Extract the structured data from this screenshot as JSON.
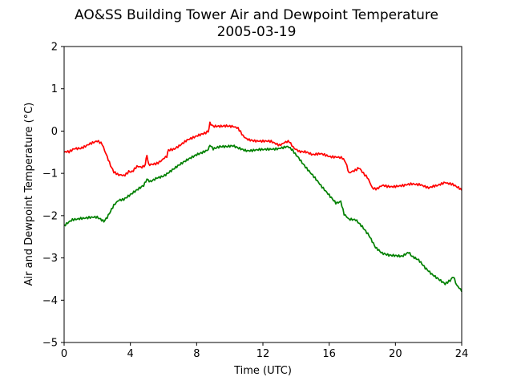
{
  "chart_data": {
    "type": "line",
    "title": "AO&SS Building Tower Air and Dewpoint Temperature",
    "subtitle": "2005-03-19",
    "xlabel": "Time (UTC)",
    "ylabel": "Air and Dewpoint Temperature (°C)",
    "xlim": [
      0,
      24
    ],
    "ylim": [
      -5,
      2
    ],
    "xticks": [
      0,
      4,
      8,
      12,
      16,
      20,
      24
    ],
    "yticks": [
      -5,
      -4,
      -3,
      -2,
      -1,
      0,
      1,
      2
    ],
    "grid": false,
    "legend": "none",
    "series": [
      {
        "color": "#ff0000",
        "x": [
          0,
          0.3,
          0.6,
          1,
          1.5,
          2,
          2.3,
          2.6,
          2.8,
          3,
          3.3,
          3.6,
          3.9,
          4.1,
          4.4,
          4.7,
          4.9,
          5,
          5.1,
          5.3,
          5.6,
          5.9,
          6.2,
          6.3,
          6.6,
          7,
          7.5,
          8,
          8.4,
          8.7,
          8.8,
          9,
          9.4,
          9.8,
          10.2,
          10.5,
          10.8,
          11.1,
          11.5,
          12,
          12.5,
          13,
          13.3,
          13.6,
          13.9,
          14.2,
          14.6,
          15,
          15.5,
          16,
          16.5,
          16.8,
          17,
          17.2,
          17.5,
          17.8,
          18,
          18.3,
          18.6,
          18.9,
          19.2,
          19.5,
          20,
          20.5,
          21,
          21.5,
          22,
          22.5,
          23,
          23.3,
          23.6,
          24
        ],
        "y": [
          -0.5,
          -0.5,
          -0.4,
          -0.4,
          -0.3,
          -0.25,
          -0.3,
          -0.6,
          -0.8,
          -0.95,
          -1.05,
          -1.05,
          -0.95,
          -0.95,
          -0.85,
          -0.85,
          -0.8,
          -0.55,
          -0.8,
          -0.8,
          -0.75,
          -0.7,
          -0.6,
          -0.45,
          -0.45,
          -0.35,
          -0.2,
          -0.1,
          -0.05,
          0.0,
          0.18,
          0.1,
          0.1,
          0.12,
          0.12,
          0.05,
          -0.1,
          -0.2,
          -0.22,
          -0.25,
          -0.25,
          -0.32,
          -0.28,
          -0.25,
          -0.4,
          -0.5,
          -0.5,
          -0.55,
          -0.55,
          -0.6,
          -0.6,
          -0.65,
          -0.75,
          -1.0,
          -0.95,
          -0.85,
          -0.95,
          -1.1,
          -1.35,
          -1.35,
          -1.3,
          -1.3,
          -1.3,
          -1.3,
          -1.25,
          -1.25,
          -1.35,
          -1.3,
          -1.2,
          -1.25,
          -1.3,
          -1.4
        ]
      },
      {
        "color": "#008000",
        "x": [
          0,
          0.5,
          1,
          1.5,
          2,
          2.4,
          2.6,
          2.8,
          3,
          3.3,
          3.6,
          4,
          4.4,
          4.8,
          5,
          5.2,
          5.6,
          6,
          6.4,
          6.8,
          7.2,
          7.6,
          8,
          8.4,
          8.7,
          8.8,
          9,
          9.4,
          9.8,
          10.2,
          10.6,
          11,
          11.5,
          12,
          12.5,
          13,
          13.5,
          13.8,
          14.1,
          14.5,
          15,
          15.5,
          16,
          16.4,
          16.7,
          16.9,
          17.2,
          17.6,
          18,
          18.4,
          18.8,
          19.2,
          19.6,
          20,
          20.4,
          20.8,
          21,
          21.4,
          21.8,
          22.2,
          22.6,
          23,
          23.3,
          23.5,
          23.7,
          24
        ],
        "y": [
          -2.25,
          -2.1,
          -2.05,
          -2.05,
          -2.05,
          -2.15,
          -2.05,
          -1.9,
          -1.75,
          -1.65,
          -1.6,
          -1.5,
          -1.4,
          -1.3,
          -1.15,
          -1.2,
          -1.1,
          -1.05,
          -0.95,
          -0.85,
          -0.75,
          -0.65,
          -0.55,
          -0.48,
          -0.45,
          -0.32,
          -0.42,
          -0.38,
          -0.38,
          -0.35,
          -0.4,
          -0.45,
          -0.45,
          -0.45,
          -0.42,
          -0.4,
          -0.38,
          -0.45,
          -0.6,
          -0.8,
          -1.05,
          -1.3,
          -1.5,
          -1.7,
          -1.65,
          -1.95,
          -2.1,
          -2.1,
          -2.25,
          -2.45,
          -2.75,
          -2.9,
          -2.95,
          -2.95,
          -2.95,
          -2.85,
          -2.95,
          -3.05,
          -3.25,
          -3.4,
          -3.5,
          -3.6,
          -3.55,
          -3.45,
          -3.65,
          -3.8
        ]
      }
    ]
  }
}
